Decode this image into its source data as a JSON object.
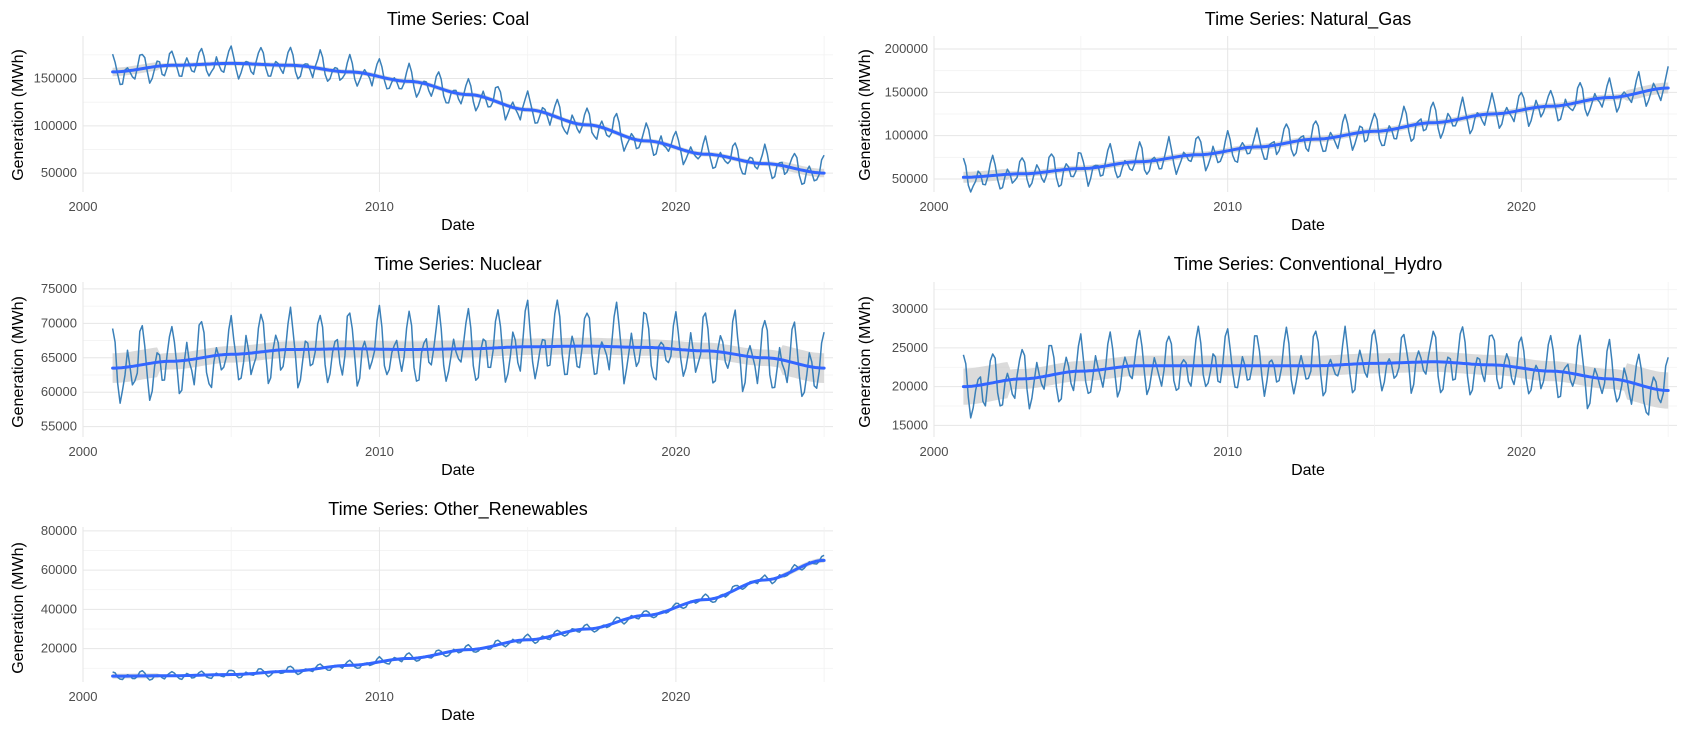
{
  "colors": {
    "series": "#3a80b9",
    "trend": "#3366ff",
    "ribbon": "#cccccc",
    "grid": "#e6e6e6",
    "background": "#ffffff"
  },
  "chart_data": [
    {
      "type": "line",
      "title": "Time Series: Coal",
      "xlabel": "Date",
      "ylabel": "Generation (MWh)",
      "x_ticks": [
        "2000",
        "2010",
        "2020"
      ],
      "y_ticks": [
        "50000",
        "100000",
        "150000"
      ],
      "y_tick_values": [
        50000,
        100000,
        150000
      ],
      "xlim": [
        2000.0,
        2025.3
      ],
      "ylim": [
        30000,
        195000
      ],
      "x_start": 2001.0,
      "x_end": 2025.0,
      "seasonal_amplitude": 18000,
      "ribbon_width": 2500,
      "trend_knots": [
        [
          2001,
          157000
        ],
        [
          2003,
          164000
        ],
        [
          2005,
          166000
        ],
        [
          2007,
          164000
        ],
        [
          2009,
          157000
        ],
        [
          2011,
          147000
        ],
        [
          2013,
          133000
        ],
        [
          2015,
          117000
        ],
        [
          2017,
          101000
        ],
        [
          2019,
          84000
        ],
        [
          2021,
          70000
        ],
        [
          2023,
          60000
        ],
        [
          2025,
          50000
        ]
      ],
      "grid": true
    },
    {
      "type": "line",
      "title": "Time Series: Natural_Gas",
      "xlabel": "Date",
      "ylabel": "Generation (MWh)",
      "x_ticks": [
        "2000",
        "2010",
        "2020"
      ],
      "y_ticks": [
        "50000",
        "100000",
        "150000",
        "200000"
      ],
      "y_tick_values": [
        50000,
        100000,
        150000,
        200000
      ],
      "xlim": [
        2000.0,
        2025.3
      ],
      "ylim": [
        35000,
        215000
      ],
      "x_start": 2001.0,
      "x_end": 2025.0,
      "seasonal_amplitude": 22000,
      "ribbon_width": 3500,
      "trend_knots": [
        [
          2001,
          52000
        ],
        [
          2003,
          56000
        ],
        [
          2005,
          62000
        ],
        [
          2007,
          70000
        ],
        [
          2009,
          78000
        ],
        [
          2011,
          87000
        ],
        [
          2013,
          96000
        ],
        [
          2015,
          105000
        ],
        [
          2017,
          115000
        ],
        [
          2019,
          125000
        ],
        [
          2021,
          134000
        ],
        [
          2023,
          144000
        ],
        [
          2025,
          155000
        ]
      ],
      "grid": true
    },
    {
      "type": "line",
      "title": "Time Series: Nuclear",
      "xlabel": "Date",
      "ylabel": "Generation (MWh)",
      "x_ticks": [
        "2000",
        "2010",
        "2020"
      ],
      "y_ticks": [
        "55000",
        "60000",
        "65000",
        "70000",
        "75000"
      ],
      "y_tick_values": [
        55000,
        60000,
        65000,
        70000,
        75000
      ],
      "xlim": [
        2000.0,
        2025.3
      ],
      "ylim": [
        53500,
        76000
      ],
      "x_start": 2001.0,
      "x_end": 2025.0,
      "seasonal_amplitude": 6000,
      "ribbon_width": 1200,
      "trend_knots": [
        [
          2001,
          63500
        ],
        [
          2003,
          64500
        ],
        [
          2005,
          65500
        ],
        [
          2007,
          66200
        ],
        [
          2009,
          66300
        ],
        [
          2011,
          66200
        ],
        [
          2013,
          66300
        ],
        [
          2015,
          66600
        ],
        [
          2017,
          66700
        ],
        [
          2019,
          66500
        ],
        [
          2021,
          66000
        ],
        [
          2023,
          65000
        ],
        [
          2025,
          63500
        ]
      ],
      "grid": true
    },
    {
      "type": "line",
      "title": "Time Series: Conventional_Hydro",
      "xlabel": "Date",
      "ylabel": "Generation (MWh)",
      "x_ticks": [
        "2000",
        "2010",
        "2020"
      ],
      "y_ticks": [
        "15000",
        "20000",
        "25000",
        "30000"
      ],
      "y_tick_values": [
        15000,
        20000,
        25000,
        30000
      ],
      "xlim": [
        2000.0,
        2025.3
      ],
      "ylim": [
        13500,
        33500
      ],
      "x_start": 2001.0,
      "x_end": 2025.0,
      "seasonal_amplitude": 4500,
      "ribbon_width": 1300,
      "trend_knots": [
        [
          2001,
          20000
        ],
        [
          2003,
          21000
        ],
        [
          2005,
          22000
        ],
        [
          2007,
          22700
        ],
        [
          2009,
          22700
        ],
        [
          2011,
          22700
        ],
        [
          2013,
          22700
        ],
        [
          2015,
          23000
        ],
        [
          2017,
          23200
        ],
        [
          2019,
          22800
        ],
        [
          2021,
          22000
        ],
        [
          2023,
          21000
        ],
        [
          2025,
          19500
        ]
      ],
      "grid": true
    },
    {
      "type": "line",
      "title": "Time Series: Other_Renewables",
      "xlabel": "Date",
      "ylabel": "Generation (MWh)",
      "x_ticks": [
        "2000",
        "2010",
        "2020"
      ],
      "y_ticks": [
        "20000",
        "40000",
        "60000",
        "80000"
      ],
      "y_tick_values": [
        20000,
        40000,
        60000,
        80000
      ],
      "xlim": [
        2000.0,
        2025.3
      ],
      "ylim": [
        3000,
        82000
      ],
      "x_start": 2001.0,
      "x_end": 2025.0,
      "seasonal_amplitude": 2500,
      "ribbon_width": 700,
      "trend_knots": [
        [
          2001,
          6000
        ],
        [
          2003,
          6200
        ],
        [
          2005,
          6800
        ],
        [
          2007,
          8500
        ],
        [
          2009,
          11500
        ],
        [
          2011,
          15000
        ],
        [
          2013,
          19500
        ],
        [
          2015,
          24500
        ],
        [
          2017,
          30000
        ],
        [
          2019,
          37000
        ],
        [
          2021,
          45000
        ],
        [
          2023,
          55000
        ],
        [
          2025,
          65000
        ]
      ],
      "grid": true
    }
  ]
}
